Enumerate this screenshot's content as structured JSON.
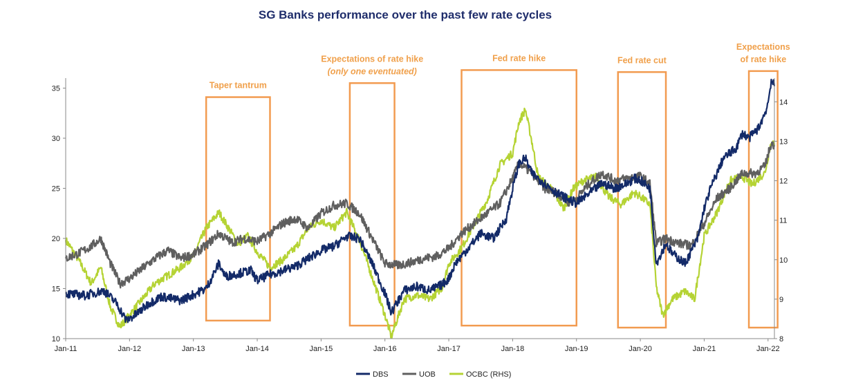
{
  "chart_data": {
    "type": "line",
    "title": "SG Banks performance over the past few rate cycles",
    "x_tick_labels": [
      "Jan-11",
      "Jan-12",
      "Jan-13",
      "Jan-14",
      "Jan-15",
      "Jan-16",
      "Jan-17",
      "Jan-18",
      "Jan-19",
      "Jan-20",
      "Jan-21",
      "Jan-22"
    ],
    "x_range": [
      2011.0,
      2022.1
    ],
    "left_axis": {
      "ylim": [
        10,
        36
      ],
      "ticks": [
        10,
        15,
        20,
        25,
        30,
        35
      ]
    },
    "right_axis": {
      "ylim": [
        8,
        14.6
      ],
      "ticks": [
        8,
        9,
        10,
        11,
        12,
        13,
        14
      ]
    },
    "series": [
      {
        "name": "DBS",
        "axis": "left",
        "color": "#132a68",
        "points": [
          [
            2011.0,
            14.5
          ],
          [
            2011.3,
            14.3
          ],
          [
            2011.6,
            14.8
          ],
          [
            2011.8,
            13.5
          ],
          [
            2011.95,
            11.8
          ],
          [
            2012.1,
            12.4
          ],
          [
            2012.3,
            13.5
          ],
          [
            2012.5,
            14.2
          ],
          [
            2012.8,
            13.8
          ],
          [
            2013.0,
            14.4
          ],
          [
            2013.2,
            15.0
          ],
          [
            2013.4,
            17.5
          ],
          [
            2013.5,
            16.2
          ],
          [
            2013.7,
            16.5
          ],
          [
            2013.9,
            16.8
          ],
          [
            2014.0,
            15.8
          ],
          [
            2014.2,
            16.4
          ],
          [
            2014.4,
            16.8
          ],
          [
            2014.6,
            17.2
          ],
          [
            2014.8,
            18.0
          ],
          [
            2015.0,
            18.8
          ],
          [
            2015.2,
            19.2
          ],
          [
            2015.4,
            20.2
          ],
          [
            2015.6,
            20.0
          ],
          [
            2015.8,
            17.5
          ],
          [
            2016.0,
            14.5
          ],
          [
            2016.1,
            12.6
          ],
          [
            2016.3,
            14.8
          ],
          [
            2016.5,
            15.2
          ],
          [
            2016.7,
            14.8
          ],
          [
            2016.9,
            15.4
          ],
          [
            2017.0,
            16.0
          ],
          [
            2017.1,
            17.5
          ],
          [
            2017.3,
            19.0
          ],
          [
            2017.5,
            20.5
          ],
          [
            2017.7,
            20.0
          ],
          [
            2017.9,
            22.0
          ],
          [
            2018.0,
            25.0
          ],
          [
            2018.1,
            27.5
          ],
          [
            2018.2,
            28.0
          ],
          [
            2018.3,
            26.5
          ],
          [
            2018.5,
            25.5
          ],
          [
            2018.7,
            24.5
          ],
          [
            2018.9,
            23.8
          ],
          [
            2019.0,
            23.5
          ],
          [
            2019.2,
            24.5
          ],
          [
            2019.4,
            25.5
          ],
          [
            2019.6,
            25.0
          ],
          [
            2019.8,
            25.5
          ],
          [
            2019.9,
            26.0
          ],
          [
            2020.0,
            25.8
          ],
          [
            2020.15,
            25.0
          ],
          [
            2020.25,
            17.5
          ],
          [
            2020.4,
            19.5
          ],
          [
            2020.5,
            18.5
          ],
          [
            2020.7,
            17.5
          ],
          [
            2020.9,
            20.0
          ],
          [
            2021.0,
            23.0
          ],
          [
            2021.1,
            25.0
          ],
          [
            2021.3,
            28.0
          ],
          [
            2021.5,
            29.0
          ],
          [
            2021.6,
            30.5
          ],
          [
            2021.7,
            30.0
          ],
          [
            2021.85,
            31.0
          ],
          [
            2021.95,
            32.5
          ],
          [
            2022.0,
            33.5
          ],
          [
            2022.05,
            35.8
          ],
          [
            2022.1,
            35.2
          ]
        ]
      },
      {
        "name": "UOB",
        "axis": "left",
        "color": "#5f5f5f",
        "points": [
          [
            2011.0,
            18.0
          ],
          [
            2011.2,
            18.5
          ],
          [
            2011.4,
            19.2
          ],
          [
            2011.55,
            20.0
          ],
          [
            2011.7,
            17.5
          ],
          [
            2011.85,
            15.5
          ],
          [
            2012.0,
            16.0
          ],
          [
            2012.2,
            17.0
          ],
          [
            2012.4,
            18.0
          ],
          [
            2012.6,
            18.8
          ],
          [
            2012.8,
            18.0
          ],
          [
            2013.0,
            18.4
          ],
          [
            2013.2,
            19.3
          ],
          [
            2013.4,
            20.5
          ],
          [
            2013.6,
            19.6
          ],
          [
            2013.8,
            20.0
          ],
          [
            2014.0,
            19.7
          ],
          [
            2014.2,
            20.5
          ],
          [
            2014.4,
            21.5
          ],
          [
            2014.6,
            22.0
          ],
          [
            2014.8,
            21.0
          ],
          [
            2015.0,
            22.5
          ],
          [
            2015.2,
            23.3
          ],
          [
            2015.4,
            23.5
          ],
          [
            2015.6,
            22.5
          ],
          [
            2015.8,
            20.0
          ],
          [
            2016.0,
            17.5
          ],
          [
            2016.2,
            17.3
          ],
          [
            2016.4,
            17.6
          ],
          [
            2016.6,
            18.0
          ],
          [
            2016.8,
            18.2
          ],
          [
            2017.0,
            19.0
          ],
          [
            2017.2,
            20.5
          ],
          [
            2017.4,
            21.5
          ],
          [
            2017.6,
            22.5
          ],
          [
            2017.8,
            23.5
          ],
          [
            2018.0,
            26.0
          ],
          [
            2018.1,
            27.5
          ],
          [
            2018.3,
            26.5
          ],
          [
            2018.5,
            25.0
          ],
          [
            2018.7,
            24.5
          ],
          [
            2018.9,
            23.5
          ],
          [
            2019.0,
            24.0
          ],
          [
            2019.2,
            25.5
          ],
          [
            2019.4,
            26.5
          ],
          [
            2019.6,
            25.8
          ],
          [
            2019.8,
            26.0
          ],
          [
            2020.0,
            26.2
          ],
          [
            2020.15,
            25.5
          ],
          [
            2020.25,
            19.5
          ],
          [
            2020.4,
            20.0
          ],
          [
            2020.6,
            19.5
          ],
          [
            2020.8,
            19.3
          ],
          [
            2021.0,
            21.5
          ],
          [
            2021.2,
            24.0
          ],
          [
            2021.4,
            25.0
          ],
          [
            2021.6,
            26.5
          ],
          [
            2021.8,
            26.5
          ],
          [
            2021.95,
            27.2
          ],
          [
            2022.05,
            29.5
          ],
          [
            2022.1,
            29.3
          ]
        ]
      },
      {
        "name": "OCBC (RHS)",
        "axis": "right",
        "color": "#b5d334",
        "points": [
          [
            2011.0,
            10.5
          ],
          [
            2011.2,
            10.0
          ],
          [
            2011.4,
            9.4
          ],
          [
            2011.55,
            9.8
          ],
          [
            2011.7,
            8.8
          ],
          [
            2011.85,
            8.3
          ],
          [
            2012.0,
            8.6
          ],
          [
            2012.2,
            9.0
          ],
          [
            2012.4,
            9.4
          ],
          [
            2012.6,
            9.6
          ],
          [
            2012.8,
            9.8
          ],
          [
            2013.0,
            10.1
          ],
          [
            2013.2,
            10.8
          ],
          [
            2013.4,
            11.2
          ],
          [
            2013.55,
            10.8
          ],
          [
            2013.7,
            10.4
          ],
          [
            2013.85,
            10.6
          ],
          [
            2014.0,
            10.2
          ],
          [
            2014.2,
            9.8
          ],
          [
            2014.4,
            10.0
          ],
          [
            2014.6,
            10.3
          ],
          [
            2014.8,
            10.8
          ],
          [
            2015.0,
            11.0
          ],
          [
            2015.2,
            10.8
          ],
          [
            2015.4,
            11.2
          ],
          [
            2015.6,
            10.5
          ],
          [
            2015.75,
            9.8
          ],
          [
            2016.0,
            8.6
          ],
          [
            2016.1,
            8.05
          ],
          [
            2016.3,
            9.0
          ],
          [
            2016.5,
            9.1
          ],
          [
            2016.7,
            9.0
          ],
          [
            2016.9,
            9.3
          ],
          [
            2017.0,
            9.9
          ],
          [
            2017.2,
            10.3
          ],
          [
            2017.4,
            10.9
          ],
          [
            2017.6,
            11.5
          ],
          [
            2017.8,
            12.4
          ],
          [
            2018.0,
            12.7
          ],
          [
            2018.1,
            13.5
          ],
          [
            2018.2,
            13.8
          ],
          [
            2018.3,
            13.0
          ],
          [
            2018.4,
            12.1
          ],
          [
            2018.6,
            11.8
          ],
          [
            2018.8,
            11.3
          ],
          [
            2018.95,
            11.8
          ],
          [
            2019.1,
            12.0
          ],
          [
            2019.3,
            12.1
          ],
          [
            2019.5,
            11.6
          ],
          [
            2019.7,
            11.4
          ],
          [
            2019.9,
            11.7
          ],
          [
            2020.0,
            11.6
          ],
          [
            2020.15,
            11.4
          ],
          [
            2020.25,
            9.3
          ],
          [
            2020.35,
            8.6
          ],
          [
            2020.5,
            9.0
          ],
          [
            2020.7,
            9.2
          ],
          [
            2020.85,
            9.0
          ],
          [
            2021.0,
            10.6
          ],
          [
            2021.2,
            11.2
          ],
          [
            2021.4,
            12.0
          ],
          [
            2021.6,
            12.1
          ],
          [
            2021.75,
            11.9
          ],
          [
            2021.95,
            12.2
          ],
          [
            2022.05,
            13.0
          ],
          [
            2022.1,
            12.9
          ]
        ]
      }
    ],
    "annotations": [
      {
        "lines": [
          "Taper tantrum"
        ],
        "italic_line": -1,
        "x0": 2013.2,
        "x1": 2014.2,
        "y_top": 34.1,
        "y_bottom": 11.8
      },
      {
        "lines": [
          "Expectations of rate hike",
          "(only one eventuated)"
        ],
        "italic_line": 1,
        "x0": 2015.45,
        "x1": 2016.15,
        "y_top": 35.5,
        "y_bottom": 11.3
      },
      {
        "lines": [
          "Fed rate hike"
        ],
        "italic_line": -1,
        "x0": 2017.2,
        "x1": 2019.0,
        "y_top": 36.8,
        "y_bottom": 11.3
      },
      {
        "lines": [
          "Fed rate cut"
        ],
        "italic_line": -1,
        "x0": 2019.65,
        "x1": 2020.4,
        "y_top": 36.6,
        "y_bottom": 11.1
      },
      {
        "lines": [
          "Expectations",
          "of rate hike"
        ],
        "italic_line": -1,
        "x0": 2021.7,
        "x1": 2022.15,
        "y_top": 36.7,
        "y_bottom": 11.1
      }
    ],
    "legend": {
      "position": "bottom-center",
      "entries": [
        "DBS",
        "UOB",
        "OCBC (RHS)"
      ]
    },
    "grid": false
  }
}
